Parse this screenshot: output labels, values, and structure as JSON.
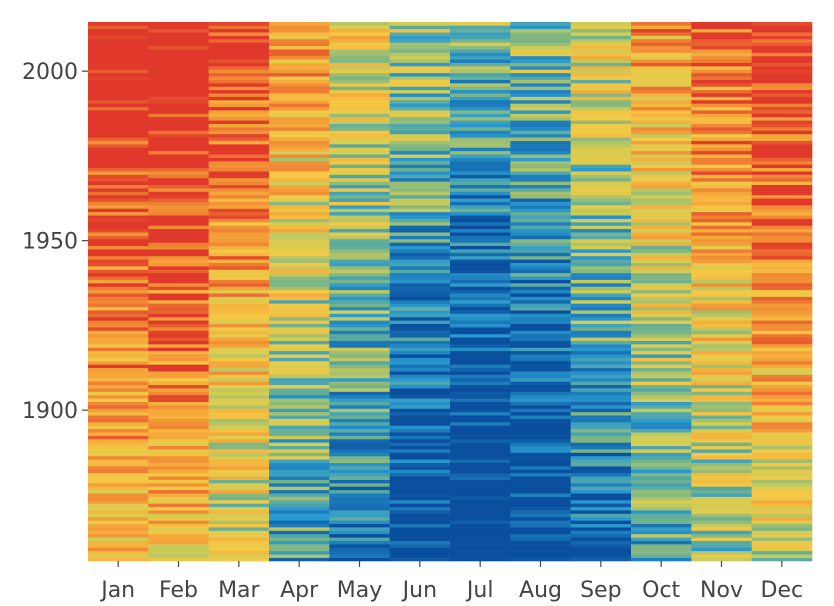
{
  "chart_data": {
    "type": "heatmap",
    "title": "",
    "xlabel": "",
    "ylabel": "",
    "categories": [
      "Jan",
      "Feb",
      "Mar",
      "Apr",
      "May",
      "Jun",
      "Jul",
      "Aug",
      "Sep",
      "Oct",
      "Nov",
      "Dec"
    ],
    "y_range": [
      1856,
      2014
    ],
    "ylim": [
      1856,
      2014
    ],
    "y_ticks": [
      {
        "value": 1900,
        "label": "1900"
      },
      {
        "value": 1950,
        "label": "1950"
      },
      {
        "value": 2000,
        "label": "2000"
      }
    ],
    "value_scale": {
      "min": 0,
      "max": 1,
      "note": "relative intensity per month, 0 = coolest (dark blue), 1 = warmest (red)"
    },
    "month_means": [
      0.88,
      0.9,
      0.74,
      0.52,
      0.38,
      0.2,
      0.1,
      0.17,
      0.33,
      0.52,
      0.66,
      0.8
    ],
    "colorscale": [
      "#0a4f9e",
      "#1a78b8",
      "#2a9ad0",
      "#74b38a",
      "#d2cd55",
      "#f5c844",
      "#f5a83a",
      "#f07f33",
      "#e0382a"
    ],
    "grid": false,
    "legend": "none"
  }
}
